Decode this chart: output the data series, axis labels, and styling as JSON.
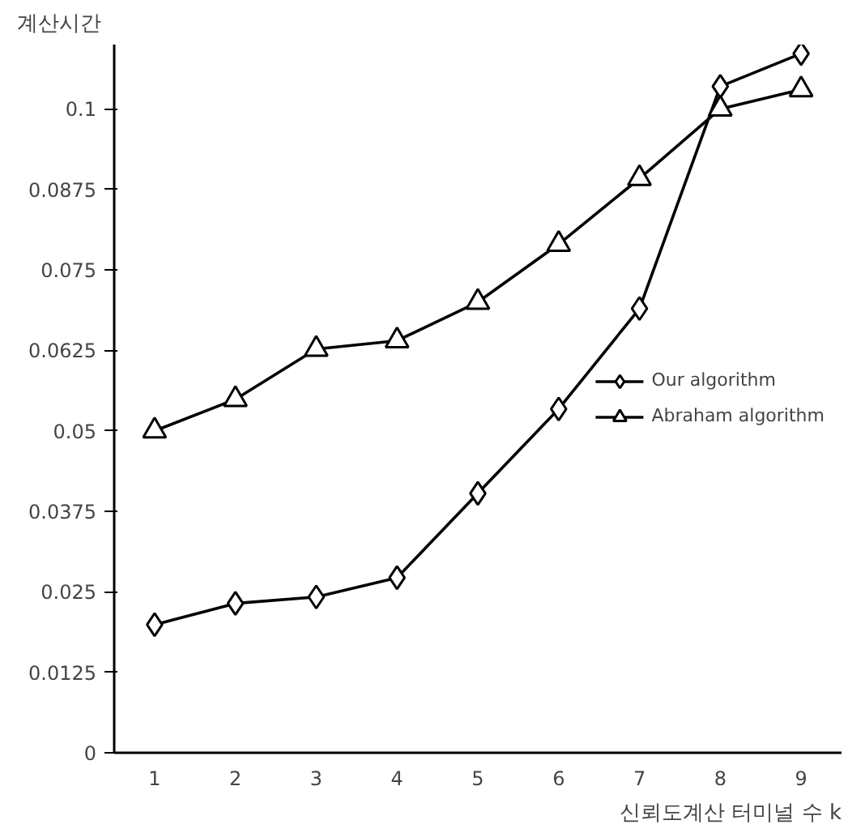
{
  "chart_data": {
    "type": "line",
    "xlabel": "신뢰도계산 터미널 수 k",
    "ylabel": "계산시간",
    "categories": [
      "1",
      "2",
      "3",
      "4",
      "5",
      "6",
      "7",
      "8",
      "9"
    ],
    "series": [
      {
        "name": "Our algorithm",
        "color": "#000000",
        "marker": "diamond",
        "values": [
          0.0199,
          0.0232,
          0.0242,
          0.0272,
          0.0403,
          0.0534,
          0.069,
          0.1035,
          0.1086
        ]
      },
      {
        "name": "Abraham algorithm",
        "color": "#000000",
        "marker": "triangle",
        "values": [
          0.05,
          0.0549,
          0.0627,
          0.064,
          0.07,
          0.079,
          0.0892,
          0.1,
          0.103
        ]
      }
    ],
    "ylim": [
      0,
      0.11
    ],
    "yticks": [
      0,
      0.0125,
      0.025,
      0.0375,
      0.05,
      0.0625,
      0.075,
      0.0875,
      0.1
    ],
    "grid": false,
    "legend": "right",
    "line_style": "solid"
  }
}
